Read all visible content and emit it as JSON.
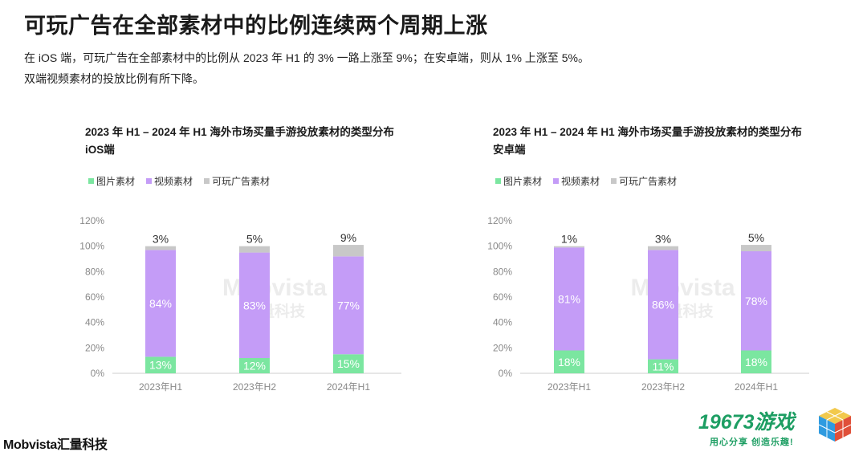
{
  "page": {
    "title": "可玩广告在全部素材中的比例连续两个周期上涨",
    "desc_line1": "在 iOS 端，可玩广告在全部素材中的比例从 2023 年 H1 的 3% 一路上涨至 9%；在安卓端，则从 1% 上涨至 5%。",
    "desc_line2": "双端视频素材的投放比例有所下降。"
  },
  "legend": {
    "image": "图片素材",
    "video": "视频素材",
    "playable": "可玩广告素材"
  },
  "colors": {
    "image": "#7be6a0",
    "video": "#c49cf7",
    "playable": "#c8c8c8",
    "axis": "#cccccc",
    "tick": "#888888"
  },
  "watermark": {
    "logo": "Mobvista",
    "cn": "汇量科技"
  },
  "brand": {
    "name": "Mobvista",
    "cn": "汇量科技"
  },
  "game_logo": {
    "main": "19673游戏",
    "sub": "用心分享 创造乐趣!"
  },
  "chart_data": [
    {
      "type": "bar",
      "stacked": true,
      "title": "2023 年 H1 – 2024 年 H1 海外市场买量手游投放素材的类型分布",
      "subtitle": "iOS端",
      "categories": [
        "2023年H1",
        "2023年H2",
        "2024年H1"
      ],
      "yticks": [
        "0%",
        "20%",
        "40%",
        "60%",
        "80%",
        "100%",
        "120%"
      ],
      "ylim": [
        0,
        120
      ],
      "series": [
        {
          "name": "图片素材",
          "key": "image",
          "values": [
            13,
            12,
            15
          ],
          "labels": [
            "13%",
            "12%",
            "15%"
          ]
        },
        {
          "name": "视频素材",
          "key": "video",
          "values": [
            84,
            83,
            77
          ],
          "labels": [
            "84%",
            "83%",
            "77%"
          ]
        },
        {
          "name": "可玩广告素材",
          "key": "playable",
          "values": [
            3,
            5,
            9
          ],
          "labels": [
            "3%",
            "5%",
            "9%"
          ]
        }
      ],
      "legend_position": "top-left"
    },
    {
      "type": "bar",
      "stacked": true,
      "title": "2023 年 H1 – 2024 年 H1 海外市场买量手游投放素材的类型分布",
      "subtitle": "安卓端",
      "categories": [
        "2023年H1",
        "2023年H2",
        "2024年H1"
      ],
      "yticks": [
        "0%",
        "20%",
        "40%",
        "60%",
        "80%",
        "100%",
        "120%"
      ],
      "ylim": [
        0,
        120
      ],
      "series": [
        {
          "name": "图片素材",
          "key": "image",
          "values": [
            18,
            11,
            18
          ],
          "labels": [
            "18%",
            "11%",
            "18%"
          ]
        },
        {
          "name": "视频素材",
          "key": "video",
          "values": [
            81,
            86,
            78
          ],
          "labels": [
            "81%",
            "86%",
            "78%"
          ]
        },
        {
          "name": "可玩广告素材",
          "key": "playable",
          "values": [
            1,
            3,
            5
          ],
          "labels": [
            "1%",
            "3%",
            "5%"
          ]
        }
      ],
      "legend_position": "top-left"
    }
  ]
}
